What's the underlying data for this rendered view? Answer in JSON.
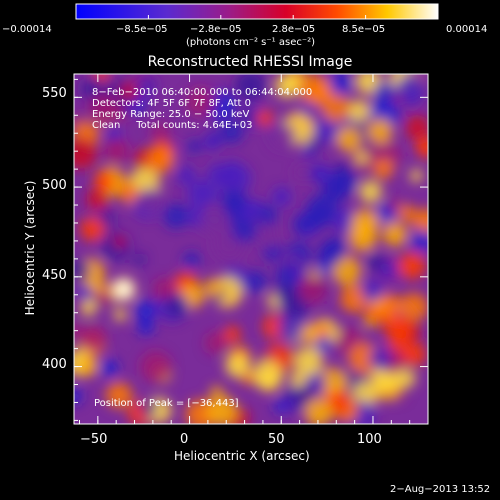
{
  "chart_data": {
    "type": "heatmap",
    "title": "Reconstructed RHESSI Image",
    "xlabel": "Heliocentric X (arcsec)",
    "ylabel": "Heliocentric Y (arcsec)",
    "xlim": [
      -63,
      130
    ],
    "ylim": [
      368,
      563
    ],
    "xticks": [
      -50,
      0,
      50,
      100
    ],
    "xtick_labels": [
      "−50",
      "0",
      "50",
      "100"
    ],
    "yticks": [
      400,
      450,
      500,
      550
    ],
    "ytick_labels": [
      "400",
      "450",
      "500",
      "550"
    ],
    "colorbar": {
      "min": -0.00014,
      "max": 0.00014,
      "tick_labels": [
        "−0.00014",
        "−8.5e−05",
        "−2.8e−05",
        "2.8e−05",
        "8.5e−05",
        "0.00014"
      ],
      "unit_label": "(photons cm⁻² s⁻¹ asec⁻²)"
    },
    "annotations": {
      "time_range": "8−Feb−2010 06:40:00.000 to 06:44:04.000",
      "detectors": "Detectors: 4F 5F 6F 7F 8F, Att 0",
      "energy_range": "Energy Range: 25.0 − 50.0 keV",
      "clean": "Clean     Total counts: 4.64E+03",
      "peak": "Position of Peak = [−36,443]"
    },
    "peak_position": [
      -36,
      443
    ],
    "colormap": "blue-purple-red-yellow-white",
    "colors": {
      "low": "#0000ff",
      "mid": "#8c38a8",
      "high": "#ffffff"
    }
  },
  "footer": {
    "date": "2−Aug−2013 13:52"
  }
}
